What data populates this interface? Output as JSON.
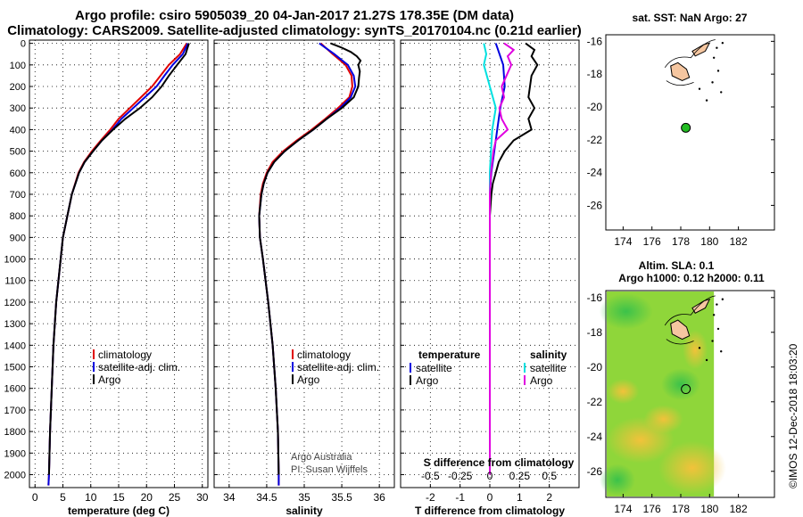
{
  "header": {
    "title_line1": "Argo profile: csiro 5905039_20 04-Jan-2017 21.27S 178.35E (DM data)",
    "title_line2": "Climatology: CARS2009. Satellite-adjusted climatology: synTS_20170104.nc (0.21d earlier)"
  },
  "colors": {
    "climatology": "#e00000",
    "satellite": "#0000e0",
    "argo": "#000000",
    "sat_salinity": "#00e0e0",
    "argo_salinity": "#e000e0",
    "float_marker": "#22bb22",
    "land": "#f5c6a0"
  },
  "depth_axis": {
    "ticks": [
      0,
      100,
      200,
      300,
      400,
      500,
      600,
      700,
      800,
      900,
      1000,
      1100,
      1200,
      1300,
      1400,
      1500,
      1600,
      1700,
      1800,
      1900,
      2000
    ],
    "labels": [
      "0",
      "100",
      "200",
      "300",
      "400",
      "500",
      "600",
      "700",
      "800",
      "900",
      "1000",
      "1100",
      "1200",
      "1300",
      "1400",
      "1500",
      "1600",
      "1700",
      "1800",
      "1900",
      "2000"
    ]
  },
  "chart_data": [
    {
      "type": "line",
      "id": "temperature",
      "xlabel": "temperature (deg C)",
      "xlim": [
        -1,
        31
      ],
      "ylim": [
        2060,
        -15
      ],
      "xticks": [
        0,
        5,
        10,
        15,
        20,
        25,
        30
      ],
      "xtick_labels": [
        "0",
        "5",
        "10",
        "15",
        "20",
        "25",
        "30"
      ],
      "legend": [
        "climatology",
        "satellite-adj. clim.",
        "Argo"
      ],
      "series": [
        {
          "name": "climatology",
          "color": "red",
          "depth": [
            0,
            50,
            100,
            150,
            200,
            250,
            300,
            350,
            400,
            450,
            500,
            550,
            600,
            700,
            800,
            900,
            1000,
            1200,
            1400,
            1600,
            1800,
            2000,
            2050
          ],
          "values": [
            27.2,
            26.0,
            24.0,
            22.5,
            21.0,
            19.0,
            17.0,
            15.0,
            13.5,
            11.8,
            10.2,
            8.8,
            7.8,
            6.6,
            5.8,
            5.0,
            4.6,
            3.8,
            3.3,
            3.0,
            2.7,
            2.5,
            2.4
          ]
        },
        {
          "name": "satellite-adj. clim.",
          "color": "blue",
          "depth": [
            0,
            50,
            100,
            150,
            200,
            250,
            300,
            350,
            400,
            450,
            500,
            550,
            600,
            700,
            800,
            900,
            1000,
            1200,
            1400,
            1600,
            1800,
            2000,
            2050
          ],
          "values": [
            27.4,
            26.5,
            24.7,
            23.2,
            21.8,
            19.7,
            17.6,
            15.5,
            13.9,
            12.0,
            10.4,
            8.9,
            7.9,
            6.6,
            5.8,
            5.0,
            4.6,
            3.8,
            3.3,
            3.0,
            2.7,
            2.5,
            2.4
          ]
        },
        {
          "name": "Argo",
          "color": "black",
          "depth": [
            0,
            50,
            100,
            150,
            200,
            250,
            300,
            350,
            400,
            450,
            500,
            550,
            600,
            700,
            800,
            900,
            1000,
            1200,
            1400,
            1600,
            1800,
            2000
          ],
          "values": [
            27.6,
            27.0,
            25.5,
            24.0,
            22.7,
            21.0,
            18.8,
            16.2,
            14.0,
            12.0,
            10.4,
            8.9,
            7.9,
            6.6,
            5.8,
            5.0,
            4.6,
            3.8,
            3.3,
            3.0,
            2.7,
            2.5
          ]
        }
      ]
    },
    {
      "type": "line",
      "id": "salinity",
      "xlabel": "salinity",
      "xlim": [
        33.8,
        36.2
      ],
      "ylim": [
        2060,
        -15
      ],
      "xticks": [
        34,
        34.5,
        35,
        35.5,
        36
      ],
      "xtick_labels": [
        "34",
        "34.5",
        "35",
        "35.5",
        "36"
      ],
      "legend": [
        "climatology",
        "satellite-adj. clim.",
        "Argo"
      ],
      "annotation": [
        "Argo Australia",
        "PI: Susan Wijffels"
      ],
      "series": [
        {
          "name": "climatology",
          "color": "red",
          "depth": [
            0,
            50,
            100,
            150,
            200,
            250,
            300,
            350,
            400,
            450,
            500,
            550,
            600,
            650,
            700,
            800,
            900,
            1000,
            1200,
            1400,
            1600,
            1800,
            2000,
            2050
          ],
          "values": [
            35.22,
            35.38,
            35.55,
            35.63,
            35.64,
            35.6,
            35.45,
            35.28,
            35.1,
            34.9,
            34.72,
            34.58,
            34.5,
            34.45,
            34.42,
            34.4,
            34.41,
            34.45,
            34.52,
            34.58,
            34.62,
            34.65,
            34.66,
            34.66
          ]
        },
        {
          "name": "satellite-adj. clim.",
          "color": "blue",
          "depth": [
            0,
            50,
            100,
            150,
            200,
            250,
            300,
            350,
            400,
            450,
            500,
            550,
            600,
            650,
            700,
            800,
            900,
            1000,
            1200,
            1400,
            1600,
            1800,
            2000,
            2050
          ],
          "values": [
            35.2,
            35.4,
            35.58,
            35.66,
            35.68,
            35.62,
            35.48,
            35.3,
            35.12,
            34.92,
            34.74,
            34.6,
            34.51,
            34.46,
            34.43,
            34.4,
            34.41,
            34.45,
            34.52,
            34.58,
            34.62,
            34.65,
            34.66,
            34.66
          ]
        },
        {
          "name": "Argo",
          "color": "black",
          "depth": [
            0,
            20,
            40,
            60,
            80,
            100,
            130,
            160,
            200,
            250,
            300,
            350,
            400,
            450,
            500,
            550,
            600,
            650,
            700,
            800,
            900,
            1000,
            1200,
            1400,
            1600,
            1800,
            2000
          ],
          "values": [
            35.35,
            35.5,
            35.62,
            35.7,
            35.75,
            35.72,
            35.74,
            35.73,
            35.72,
            35.66,
            35.5,
            35.3,
            35.12,
            34.92,
            34.74,
            34.6,
            34.51,
            34.46,
            34.43,
            34.4,
            34.41,
            34.45,
            34.52,
            34.58,
            34.62,
            34.65,
            34.66
          ]
        }
      ]
    },
    {
      "type": "line",
      "id": "difference",
      "xlabel": "T difference from climatology",
      "x2label": "S difference from climatology",
      "xlim": [
        -3,
        3
      ],
      "ylim": [
        2060,
        -15
      ],
      "xticks": [
        -2,
        -1,
        0,
        1,
        2
      ],
      "xtick_labels": [
        "-2",
        "-1",
        "0",
        "1",
        "2"
      ],
      "x2ticks": [
        -0.5,
        -0.25,
        0,
        0.25,
        0.5
      ],
      "x2tick_labels": [
        "-0.5",
        "-0.25",
        "0",
        "0.25",
        "0.5"
      ],
      "legend_temperature_title": "temperature",
      "legend_salinity_title": "salinity",
      "legend_temperature": [
        "satellite",
        "Argo"
      ],
      "legend_salinity": [
        "satellite",
        "Argo"
      ],
      "series": [
        {
          "name": "T satellite",
          "color": "blue",
          "depth": [
            0,
            100,
            200,
            300,
            400,
            500,
            600,
            700,
            800,
            1000,
            1500,
            2000
          ],
          "values": [
            0.2,
            0.45,
            0.5,
            0.35,
            0.25,
            0.15,
            0.05,
            0.0,
            0.0,
            0.0,
            0.0,
            0.0
          ]
        },
        {
          "name": "T Argo",
          "color": "black",
          "depth": [
            0,
            30,
            60,
            100,
            150,
            200,
            250,
            300,
            350,
            400,
            450,
            500,
            550,
            600,
            650,
            700,
            800,
            1000,
            1500,
            2000
          ],
          "values": [
            1.2,
            1.5,
            1.4,
            1.6,
            1.4,
            1.35,
            1.3,
            1.5,
            1.3,
            1.4,
            0.8,
            0.5,
            0.3,
            0.2,
            0.1,
            0.05,
            0.0,
            0.0,
            0.0,
            0.0
          ]
        },
        {
          "name": "S satellite",
          "color": "cyan",
          "depth": [
            0,
            50,
            100,
            200,
            300,
            400,
            500,
            600,
            700,
            800,
            1000,
            1500,
            2000
          ],
          "values": [
            -0.05,
            -0.03,
            -0.05,
            0.0,
            0.05,
            0.02,
            0.01,
            0.0,
            0.0,
            0.0,
            0.0,
            0.0,
            0.0
          ]
        },
        {
          "name": "S Argo",
          "color": "magenta",
          "depth": [
            0,
            30,
            60,
            100,
            150,
            200,
            250,
            300,
            350,
            400,
            450,
            500,
            550,
            600,
            700,
            800,
            1000,
            2000
          ],
          "values": [
            0.12,
            0.2,
            0.15,
            0.18,
            0.14,
            0.1,
            0.12,
            0.08,
            0.1,
            0.15,
            0.05,
            0.03,
            0.02,
            0.01,
            0.0,
            0.0,
            0.0,
            0.0
          ]
        }
      ]
    }
  ],
  "map_top": {
    "title": "sat. SST: NaN Argo: 27",
    "lon_ticks": [
      "174",
      "176",
      "178",
      "180",
      "182"
    ],
    "lat_ticks": [
      "-16",
      "-18",
      "-20",
      "-22",
      "-24",
      "-26"
    ],
    "lon_range": [
      172.8,
      184.5
    ],
    "lat_range": [
      -27.5,
      -15.6
    ],
    "float_lon": 178.35,
    "float_lat": -21.27
  },
  "map_bottom": {
    "title_line1": "Altim. SLA: 0.1",
    "title_line2": "Argo h1000: 0.12 h2000: 0.11",
    "lon_ticks": [
      "174",
      "176",
      "178",
      "180",
      "182"
    ],
    "lat_ticks": [
      "-16",
      "-18",
      "-20",
      "-22",
      "-24",
      "-26"
    ],
    "lon_range": [
      172.8,
      184.5
    ],
    "lat_range": [
      -27.5,
      -15.6
    ],
    "float_lon": 178.35,
    "float_lat": -21.27
  },
  "footer": {
    "credit": "©IMOS 12-Dec-2018 18:03:20"
  }
}
